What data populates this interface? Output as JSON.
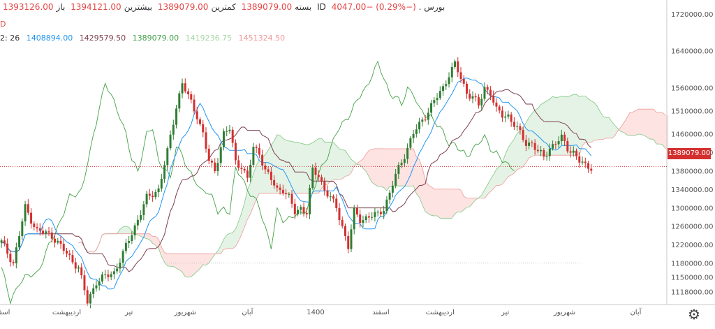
{
  "header": {
    "symbol": "بورس . ID",
    "change": "4047.00− (0.29%−)",
    "last_label": "بسته",
    "last": "1389079.00",
    "low_label": "کمترین",
    "low": "1389079.00",
    "high_label": "بیشترین",
    "high": "1394121.00",
    "open_label": "باز",
    "open": "1393126.00"
  },
  "indicator_row": {
    "params": "2: 26",
    "v1": "1408894.00",
    "v2": "1429579.50",
    "v3": "1389079.00",
    "v4": "1419236.75",
    "v5": "1451324.50"
  },
  "second_row": "D",
  "price_tag": "1389079.00",
  "colors": {
    "up": "#2e7d32",
    "down": "#d32f2f",
    "tenkan": "#2196f3",
    "kijun": "#7b3f4e",
    "chikou": "#43a047",
    "spanA": "#81c784",
    "spanB": "#ef9a9a",
    "cloud_green": "rgba(76,175,80,0.15)",
    "cloud_red": "rgba(244,67,54,0.15)",
    "value_blue": "#2196f3",
    "value_brown": "#7b3f4e",
    "value_green": "#43a047",
    "value_lightgreen": "#a5d6a7",
    "value_pink": "#ef9a9a"
  },
  "icons": {
    "settings": "gear-icon"
  },
  "chart_data": {
    "type": "candlestick",
    "title": "",
    "ylim": [
      1090000,
      1750000
    ],
    "y_ticks": [
      1720000,
      1640000,
      1560000,
      1510000,
      1460000,
      1420000,
      1380000,
      1340000,
      1300000,
      1260000,
      1220000,
      1180000,
      1150000,
      1118000
    ],
    "y_tick_labels": [
      "1720000.00",
      "1640000.00",
      "1560000.00",
      "1510000.00",
      "1460000.00",
      "1420000.00",
      "1380000.00",
      "1340000.00",
      "1300000.00",
      "1260000.00",
      "1220000.00",
      "1180000.00",
      "1150000.00",
      "1118000.00"
    ],
    "x_ticks": [
      {
        "label": "اسفند",
        "idx": 0
      },
      {
        "label": "اردیبهشت",
        "idx": 22
      },
      {
        "label": "تیر",
        "idx": 43
      },
      {
        "label": "شهریور",
        "idx": 62
      },
      {
        "label": "آبان",
        "idx": 83
      },
      {
        "label": "1400",
        "idx": 106
      },
      {
        "label": "اسفند",
        "idx": 128
      },
      {
        "label": "اردیبهشت",
        "idx": 148
      },
      {
        "label": "تیر",
        "idx": 170
      },
      {
        "label": "شهریور",
        "idx": 190
      },
      {
        "label": "آبان",
        "idx": 214
      }
    ],
    "last_price": 1389079,
    "close_path": [
      [
        0,
        1225000
      ],
      [
        4,
        1180000
      ],
      [
        8,
        1300000
      ],
      [
        12,
        1250000
      ],
      [
        17,
        1240000
      ],
      [
        22,
        1200000
      ],
      [
        26,
        1170000
      ],
      [
        29,
        1095000
      ],
      [
        32,
        1140000
      ],
      [
        35,
        1150000
      ],
      [
        38,
        1160000
      ],
      [
        41,
        1200000
      ],
      [
        45,
        1260000
      ],
      [
        49,
        1320000
      ],
      [
        53,
        1340000
      ],
      [
        56,
        1420000
      ],
      [
        59,
        1520000
      ],
      [
        61,
        1570000
      ],
      [
        63,
        1540000
      ],
      [
        66,
        1500000
      ],
      [
        68,
        1460000
      ],
      [
        70,
        1400000
      ],
      [
        72,
        1380000
      ],
      [
        75,
        1460000
      ],
      [
        77,
        1470000
      ],
      [
        79,
        1400000
      ],
      [
        81,
        1390000
      ],
      [
        83,
        1360000
      ],
      [
        85,
        1430000
      ],
      [
        87,
        1420000
      ],
      [
        89,
        1380000
      ],
      [
        91,
        1360000
      ],
      [
        93,
        1340000
      ],
      [
        95,
        1340000
      ],
      [
        97,
        1320000
      ],
      [
        99,
        1290000
      ],
      [
        101,
        1300000
      ],
      [
        103,
        1290000
      ],
      [
        105,
        1380000
      ],
      [
        107,
        1370000
      ],
      [
        109,
        1340000
      ],
      [
        111,
        1320000
      ],
      [
        113,
        1300000
      ],
      [
        115,
        1260000
      ],
      [
        117,
        1215000
      ],
      [
        119,
        1290000
      ],
      [
        121,
        1275000
      ],
      [
        124,
        1280000
      ],
      [
        127,
        1285000
      ],
      [
        129,
        1300000
      ],
      [
        131,
        1330000
      ],
      [
        133,
        1370000
      ],
      [
        135,
        1400000
      ],
      [
        137,
        1430000
      ],
      [
        139,
        1460000
      ],
      [
        141,
        1480000
      ],
      [
        143,
        1500000
      ],
      [
        145,
        1520000
      ],
      [
        147,
        1540000
      ],
      [
        149,
        1560000
      ],
      [
        151,
        1590000
      ],
      [
        153,
        1610000
      ],
      [
        155,
        1580000
      ],
      [
        157,
        1550000
      ],
      [
        159,
        1540000
      ],
      [
        161,
        1520000
      ],
      [
        163,
        1560000
      ],
      [
        165,
        1550000
      ],
      [
        167,
        1510000
      ],
      [
        169,
        1500000
      ],
      [
        171,
        1500000
      ],
      [
        173,
        1480000
      ],
      [
        175,
        1460000
      ],
      [
        177,
        1440000
      ],
      [
        179,
        1440000
      ],
      [
        181,
        1420000
      ],
      [
        183,
        1410000
      ],
      [
        185,
        1430000
      ],
      [
        187,
        1440000
      ],
      [
        189,
        1450000
      ],
      [
        191,
        1430000
      ],
      [
        193,
        1420000
      ],
      [
        195,
        1400000
      ],
      [
        197,
        1390000
      ],
      [
        199,
        1389079
      ]
    ],
    "series": [
      {
        "name": "tenkan",
        "offset": 0
      },
      {
        "name": "kijun",
        "offset": 0
      },
      {
        "name": "chikou",
        "offset": -26
      },
      {
        "name": "span_a",
        "offset": 26
      },
      {
        "name": "span_b",
        "offset": 26
      }
    ]
  }
}
